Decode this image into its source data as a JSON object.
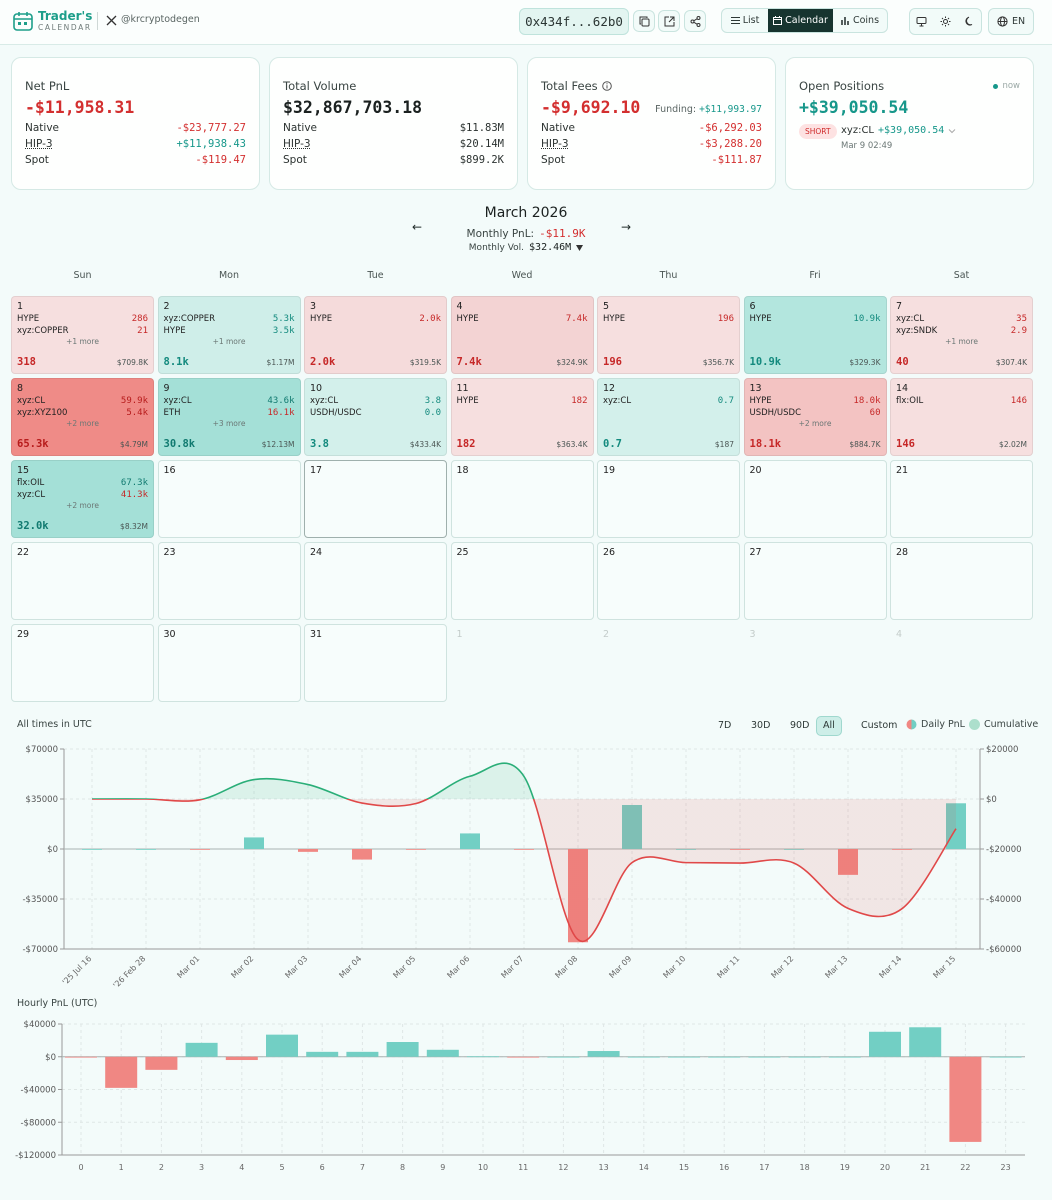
{
  "header": {
    "brand": "Trader's",
    "brand_sub": "CALENDAR",
    "handle": "@krcryptodegen",
    "address": "0x434f...62b0",
    "views": [
      "List",
      "Calendar",
      "Coins"
    ],
    "active_view": "Calendar",
    "language": "EN"
  },
  "stats": [
    {
      "label": "Net PnL",
      "value": "-$11,958.31",
      "color": "#d32f2f",
      "rows": [
        {
          "label": "Native",
          "value": "-$23,777.27",
          "color": "#d32f2f"
        },
        {
          "label": "HIP-3",
          "value": "+$11,938.43",
          "color": "#16978a",
          "underline": true
        },
        {
          "label": "Spot",
          "value": "-$119.47",
          "color": "#d32f2f"
        }
      ]
    },
    {
      "label": "Total Volume",
      "value": "$32,867,703.18",
      "color": "#1b2120",
      "rows": [
        {
          "label": "Native",
          "value": "$11.83M",
          "color": "#2b3230"
        },
        {
          "label": "HIP-3",
          "value": "$20.14M",
          "color": "#2b3230",
          "underline": true
        },
        {
          "label": "Spot",
          "value": "$899.2K",
          "color": "#2b3230"
        }
      ]
    },
    {
      "label": "Total Fees",
      "value": "-$9,692.10",
      "color": "#d32f2f",
      "funding_label": "Funding:",
      "funding": "+$11,993.97",
      "funding_color": "#16978a",
      "rows": [
        {
          "label": "Native",
          "value": "-$6,292.03",
          "color": "#d32f2f"
        },
        {
          "label": "HIP-3",
          "value": "-$3,288.20",
          "color": "#d32f2f",
          "underline": true
        },
        {
          "label": "Spot",
          "value": "-$111.87",
          "color": "#d32f2f"
        }
      ]
    }
  ],
  "open_positions": {
    "label": "Open Positions",
    "status": "now",
    "value": "+$39,050.54",
    "color": "#16978a",
    "side": "SHORT",
    "symbol": "xyz:CL",
    "pnl": "+$39,050.54",
    "time": "Mar 9 02:49"
  },
  "month": {
    "title": "March 2026",
    "prev": "←",
    "next": "→",
    "pnl_label": "Monthly PnL:",
    "pnl": "-$11.9K",
    "pnl_color": "#d32f2f",
    "vol_label": "Monthly Vol.",
    "vol": "$32.46M"
  },
  "weekdays": [
    "Sun",
    "Mon",
    "Tue",
    "Wed",
    "Thu",
    "Fri",
    "Sat"
  ],
  "days": [
    {
      "day": "1",
      "color": "#f6dfdf",
      "positions": [
        {
          "symbol": "HYPE",
          "value": "286",
          "color": "#c62828"
        },
        {
          "symbol": "xyz:COPPER",
          "value": "21",
          "color": "#c62828"
        }
      ],
      "more": "+1 more",
      "pnl": "318",
      "pnl_color": "#c62828",
      "volume": "$709.8K"
    },
    {
      "day": "2",
      "color": "#cfeee9",
      "positions": [
        {
          "symbol": "xyz:COPPER",
          "value": "5.3k",
          "color": "#138a7e"
        },
        {
          "symbol": "HYPE",
          "value": "3.5k",
          "color": "#138a7e"
        }
      ],
      "more": "+1 more",
      "pnl": "8.1k",
      "pnl_color": "#138a7e",
      "volume": "$1.17M"
    },
    {
      "day": "3",
      "color": "#f5dbdb",
      "positions": [
        {
          "symbol": "HYPE",
          "value": "2.0k",
          "color": "#c62828"
        }
      ],
      "pnl": "2.0k",
      "pnl_color": "#c62828",
      "volume": "$319.5K"
    },
    {
      "day": "4",
      "color": "#f3d3d3",
      "positions": [
        {
          "symbol": "HYPE",
          "value": "7.4k",
          "color": "#c62828"
        }
      ],
      "pnl": "7.4k",
      "pnl_color": "#c62828",
      "volume": "$324.9K"
    },
    {
      "day": "5",
      "color": "#f6dfdf",
      "positions": [
        {
          "symbol": "HYPE",
          "value": "196",
          "color": "#c62828"
        }
      ],
      "pnl": "196",
      "pnl_color": "#c62828",
      "volume": "$356.7K"
    },
    {
      "day": "6",
      "color": "#b3e6de",
      "positions": [
        {
          "symbol": "HYPE",
          "value": "10.9k",
          "color": "#138a7e"
        }
      ],
      "pnl": "10.9k",
      "pnl_color": "#138a7e",
      "volume": "$329.3K"
    },
    {
      "day": "7",
      "color": "#f6dfdf",
      "positions": [
        {
          "symbol": "xyz:CL",
          "value": "35",
          "color": "#c62828"
        },
        {
          "symbol": "xyz:SNDK",
          "value": "2.9",
          "color": "#c62828"
        }
      ],
      "more": "+1 more",
      "pnl": "40",
      "pnl_color": "#c62828",
      "volume": "$307.4K"
    },
    {
      "day": "8",
      "color": "#ef8b87",
      "positions": [
        {
          "symbol": "xyz:CL",
          "value": "59.9k",
          "color": "#b71c1c"
        },
        {
          "symbol": "xyz:XYZ100",
          "value": "5.4k",
          "color": "#b71c1c"
        }
      ],
      "more": "+2 more",
      "pnl": "65.3k",
      "pnl_color": "#b71c1c",
      "volume": "$4.79M"
    },
    {
      "day": "9",
      "color": "#a4e0d7",
      "positions": [
        {
          "symbol": "xyz:CL",
          "value": "43.6k",
          "color": "#117a70"
        },
        {
          "symbol": "ETH",
          "value": "16.1k",
          "color": "#c62828"
        }
      ],
      "more": "+3 more",
      "pnl": "30.8k",
      "pnl_color": "#117a70",
      "volume": "$12.13M"
    },
    {
      "day": "10",
      "color": "#d3f0eb",
      "positions": [
        {
          "symbol": "xyz:CL",
          "value": "3.8",
          "color": "#138a7e"
        },
        {
          "symbol": "USDH/USDC",
          "value": "0.0",
          "color": "#138a7e"
        }
      ],
      "pnl": "3.8",
      "pnl_color": "#138a7e",
      "volume": "$433.4K"
    },
    {
      "day": "11",
      "color": "#f6dfdf",
      "positions": [
        {
          "symbol": "HYPE",
          "value": "182",
          "color": "#c62828"
        }
      ],
      "pnl": "182",
      "pnl_color": "#c62828",
      "volume": "$363.4K"
    },
    {
      "day": "12",
      "color": "#d3f0eb",
      "positions": [
        {
          "symbol": "xyz:CL",
          "value": "0.7",
          "color": "#138a7e"
        }
      ],
      "pnl": "0.7",
      "pnl_color": "#138a7e",
      "volume": "$187"
    },
    {
      "day": "13",
      "color": "#f3c3c2",
      "positions": [
        {
          "symbol": "HYPE",
          "value": "18.0k",
          "color": "#c62828"
        },
        {
          "symbol": "USDH/USDC",
          "value": "60",
          "color": "#c62828"
        }
      ],
      "more": "+2 more",
      "pnl": "18.1k",
      "pnl_color": "#c62828",
      "volume": "$884.7K"
    },
    {
      "day": "14",
      "color": "#f6dfdf",
      "positions": [
        {
          "symbol": "flx:OIL",
          "value": "146",
          "color": "#c62828"
        }
      ],
      "pnl": "146",
      "pnl_color": "#c62828",
      "volume": "$2.02M"
    },
    {
      "day": "15",
      "color": "#a4e0d7",
      "positions": [
        {
          "symbol": "flx:OIL",
          "value": "67.3k",
          "color": "#117a70"
        },
        {
          "symbol": "xyz:CL",
          "value": "41.3k",
          "color": "#c62828"
        }
      ],
      "more": "+2 more",
      "pnl": "32.0k",
      "pnl_color": "#117a70",
      "volume": "$8.32M"
    },
    {
      "day": "16"
    },
    {
      "day": "17",
      "border": "#9fb0ad"
    },
    {
      "day": "18"
    },
    {
      "day": "19"
    },
    {
      "day": "20"
    },
    {
      "day": "21"
    },
    {
      "day": "22"
    },
    {
      "day": "23"
    },
    {
      "day": "24"
    },
    {
      "day": "25"
    },
    {
      "day": "26"
    },
    {
      "day": "27"
    },
    {
      "day": "28"
    },
    {
      "day": "29"
    },
    {
      "day": "30"
    },
    {
      "day": "31"
    },
    {
      "day": "1",
      "day_color": "#c3ccca",
      "outside": true
    },
    {
      "day": "2",
      "day_color": "#c3ccca",
      "outside": true
    },
    {
      "day": "3",
      "day_color": "#c3ccca",
      "outside": true
    },
    {
      "day": "4",
      "day_color": "#c3ccca",
      "outside": true
    }
  ],
  "chart_data": [
    {
      "type": "bar",
      "title": "All times in UTC",
      "ranges": [
        "7D",
        "30D",
        "90D",
        "All",
        "Custom"
      ],
      "active_range": "All",
      "categories": [
        "'25 Jul 16",
        "'26 Feb 28",
        "Mar 01",
        "Mar 02",
        "Mar 03",
        "Mar 04",
        "Mar 05",
        "Mar 06",
        "Mar 07",
        "Mar 08",
        "Mar 09",
        "Mar 10",
        "Mar 11",
        "Mar 12",
        "Mar 13",
        "Mar 14",
        "Mar 15"
      ],
      "series": [
        {
          "name": "Daily PnL",
          "type": "bar",
          "color": "#72cfc4",
          "negative_color": "#f08783",
          "values": [
            0,
            0,
            -318,
            8100,
            -2000,
            -7400,
            -196,
            10900,
            -40,
            -65300,
            30800,
            3.8,
            -182,
            0.7,
            -18100,
            -146,
            32000
          ]
        },
        {
          "name": "Cumulative",
          "type": "line",
          "axis": "y2",
          "color": "#2aae78",
          "negative_color": "#e04848",
          "values": [
            0,
            0,
            -318,
            7782,
            5782,
            -1618,
            -1814,
            9086,
            9046,
            -56254,
            -25454,
            -25450,
            -25632,
            -25631,
            -43731,
            -43877,
            -11877
          ]
        }
      ],
      "ylim": [
        -70000,
        70000
      ],
      "yticks": [
        {
          "value": 70000,
          "label": "$70000"
        },
        {
          "value": 35000,
          "label": "$35000"
        },
        {
          "value": 0,
          "label": "$0"
        },
        {
          "value": -35000,
          "label": "-$35000"
        },
        {
          "value": -70000,
          "label": "-$70000"
        }
      ],
      "y2lim": [
        -60000,
        20000
      ],
      "y2ticks": [
        {
          "value": 20000,
          "label": "$20000"
        },
        {
          "value": 0,
          "label": "$0"
        },
        {
          "value": -20000,
          "label": "-$20000"
        },
        {
          "value": -40000,
          "label": "-$40000"
        },
        {
          "value": -60000,
          "label": "-$60000"
        }
      ],
      "grid": true
    },
    {
      "type": "bar",
      "title": "Hourly PnL (UTC)",
      "categories": [
        0,
        1,
        2,
        3,
        4,
        5,
        6,
        7,
        8,
        9,
        10,
        11,
        12,
        13,
        14,
        15,
        16,
        17,
        18,
        19,
        20,
        21,
        22,
        23
      ],
      "values": [
        -1000,
        -38000,
        -16000,
        17000,
        -4000,
        27000,
        6000,
        6000,
        18000,
        8500,
        500,
        -1000,
        0,
        7000,
        0,
        0,
        0,
        0,
        0,
        0,
        30500,
        36000,
        -104000,
        0
      ],
      "color": "#72cfc4",
      "negative_color": "#f08783",
      "ylim": [
        -120000,
        40000
      ],
      "yticks": [
        {
          "value": 40000,
          "label": "$40000"
        },
        {
          "value": 0,
          "label": "$0"
        },
        {
          "value": -40000,
          "label": "-$40000"
        },
        {
          "value": -80000,
          "label": "-$80000"
        },
        {
          "value": -120000,
          "label": "-$120000"
        }
      ],
      "grid": true
    }
  ]
}
